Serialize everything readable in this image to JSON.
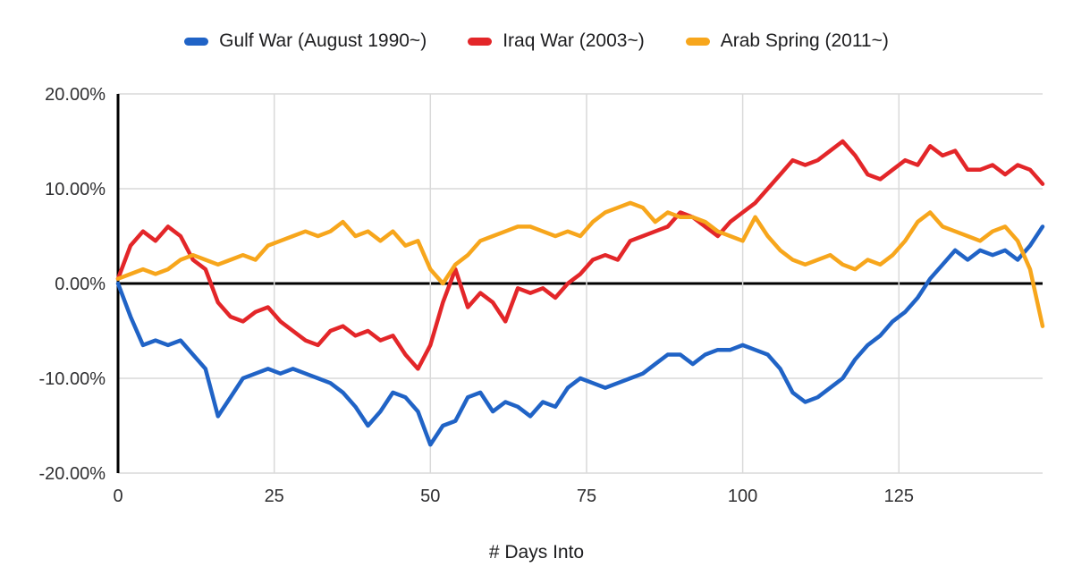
{
  "chart_data": {
    "type": "line",
    "title": "",
    "xlabel": "# Days Into",
    "ylabel": "",
    "xlim": [
      0,
      148
    ],
    "ylim": [
      -20,
      20
    ],
    "xticks": [
      0,
      25,
      50,
      75,
      100,
      125
    ],
    "xtick_labels": [
      "0",
      "25",
      "50",
      "75",
      "100",
      "125"
    ],
    "yticks": [
      20,
      10,
      0,
      -10,
      -20
    ],
    "ytick_labels": [
      "20.00%",
      "10.00%",
      "0.00%",
      "-10.00%",
      "-20.00%"
    ],
    "grid": true,
    "legend_position": "top",
    "colors": {
      "grid": "#d9d9d9",
      "axis": "#000000",
      "tick_text": "#2f2f31"
    },
    "x": [
      0,
      2,
      4,
      6,
      8,
      10,
      12,
      14,
      16,
      18,
      20,
      22,
      24,
      26,
      28,
      30,
      32,
      34,
      36,
      38,
      40,
      42,
      44,
      46,
      48,
      50,
      52,
      54,
      56,
      58,
      60,
      62,
      64,
      66,
      68,
      70,
      72,
      74,
      76,
      78,
      80,
      82,
      84,
      86,
      88,
      90,
      92,
      94,
      96,
      98,
      100,
      102,
      104,
      106,
      108,
      110,
      112,
      114,
      116,
      118,
      120,
      122,
      124,
      126,
      128,
      130,
      132,
      134,
      136,
      138,
      140,
      142,
      144,
      146,
      148
    ],
    "series": [
      {
        "name": "Gulf War (August 1990~)",
        "color": "#2063c6",
        "values": [
          0,
          -3.5,
          -6.5,
          -6,
          -6.5,
          -6,
          -7.5,
          -9,
          -14,
          -12,
          -10,
          -9.5,
          -9,
          -9.5,
          -9,
          -9.5,
          -10,
          -10.5,
          -11.5,
          -13,
          -15,
          -13.5,
          -11.5,
          -12,
          -13.5,
          -17,
          -15,
          -14.5,
          -12,
          -11.5,
          -13.5,
          -12.5,
          -13,
          -14,
          -12.5,
          -13,
          -11,
          -10,
          -10.5,
          -11,
          -10.5,
          -10,
          -9.5,
          -8.5,
          -7.5,
          -7.5,
          -8.5,
          -7.5,
          -7,
          -7,
          -6.5,
          -7,
          -7.5,
          -9,
          -11.5,
          -12.5,
          -12,
          -11,
          -10,
          -8,
          -6.5,
          -5.5,
          -4,
          -3,
          -1.5,
          0.5,
          2,
          3.5,
          2.5,
          3.5,
          3,
          3.5,
          2.5,
          4,
          6
        ]
      },
      {
        "name": "Iraq War (2003~)",
        "color": "#e32629",
        "values": [
          0.5,
          4,
          5.5,
          4.5,
          6,
          5,
          2.5,
          1.5,
          -2,
          -3.5,
          -4,
          -3,
          -2.5,
          -4,
          -5,
          -6,
          -6.5,
          -5,
          -4.5,
          -5.5,
          -5,
          -6,
          -5.5,
          -7.5,
          -9,
          -6.5,
          -2,
          1.5,
          -2.5,
          -1,
          -2,
          -4,
          -0.5,
          -1,
          -0.5,
          -1.5,
          0,
          1,
          2.5,
          3,
          2.5,
          4.5,
          5,
          5.5,
          6,
          7.5,
          7,
          6,
          5,
          6.5,
          7.5,
          8.5,
          10,
          11.5,
          13,
          12.5,
          13,
          14,
          15,
          13.5,
          11.5,
          11,
          12,
          13,
          12.5,
          14.5,
          13.5,
          14,
          12,
          12,
          12.5,
          11.5,
          12.5,
          12,
          10.5
        ]
      },
      {
        "name": "Arab Spring (2011~)",
        "color": "#f7a61c",
        "values": [
          0.5,
          1,
          1.5,
          1,
          1.5,
          2.5,
          3,
          2.5,
          2,
          2.5,
          3,
          2.5,
          4,
          4.5,
          5,
          5.5,
          5,
          5.5,
          6.5,
          5,
          5.5,
          4.5,
          5.5,
          4,
          4.5,
          1.5,
          0,
          2,
          3,
          4.5,
          5,
          5.5,
          6,
          6,
          5.5,
          5,
          5.5,
          5,
          6.5,
          7.5,
          8,
          8.5,
          8,
          6.5,
          7.5,
          7,
          7,
          6.5,
          5.5,
          5,
          4.5,
          7,
          5,
          3.5,
          2.5,
          2,
          2.5,
          3,
          2,
          1.5,
          2.5,
          2,
          3,
          4.5,
          6.5,
          7.5,
          6,
          5.5,
          5,
          4.5,
          5.5,
          6,
          4.5,
          1.5,
          -4.5
        ]
      }
    ]
  }
}
